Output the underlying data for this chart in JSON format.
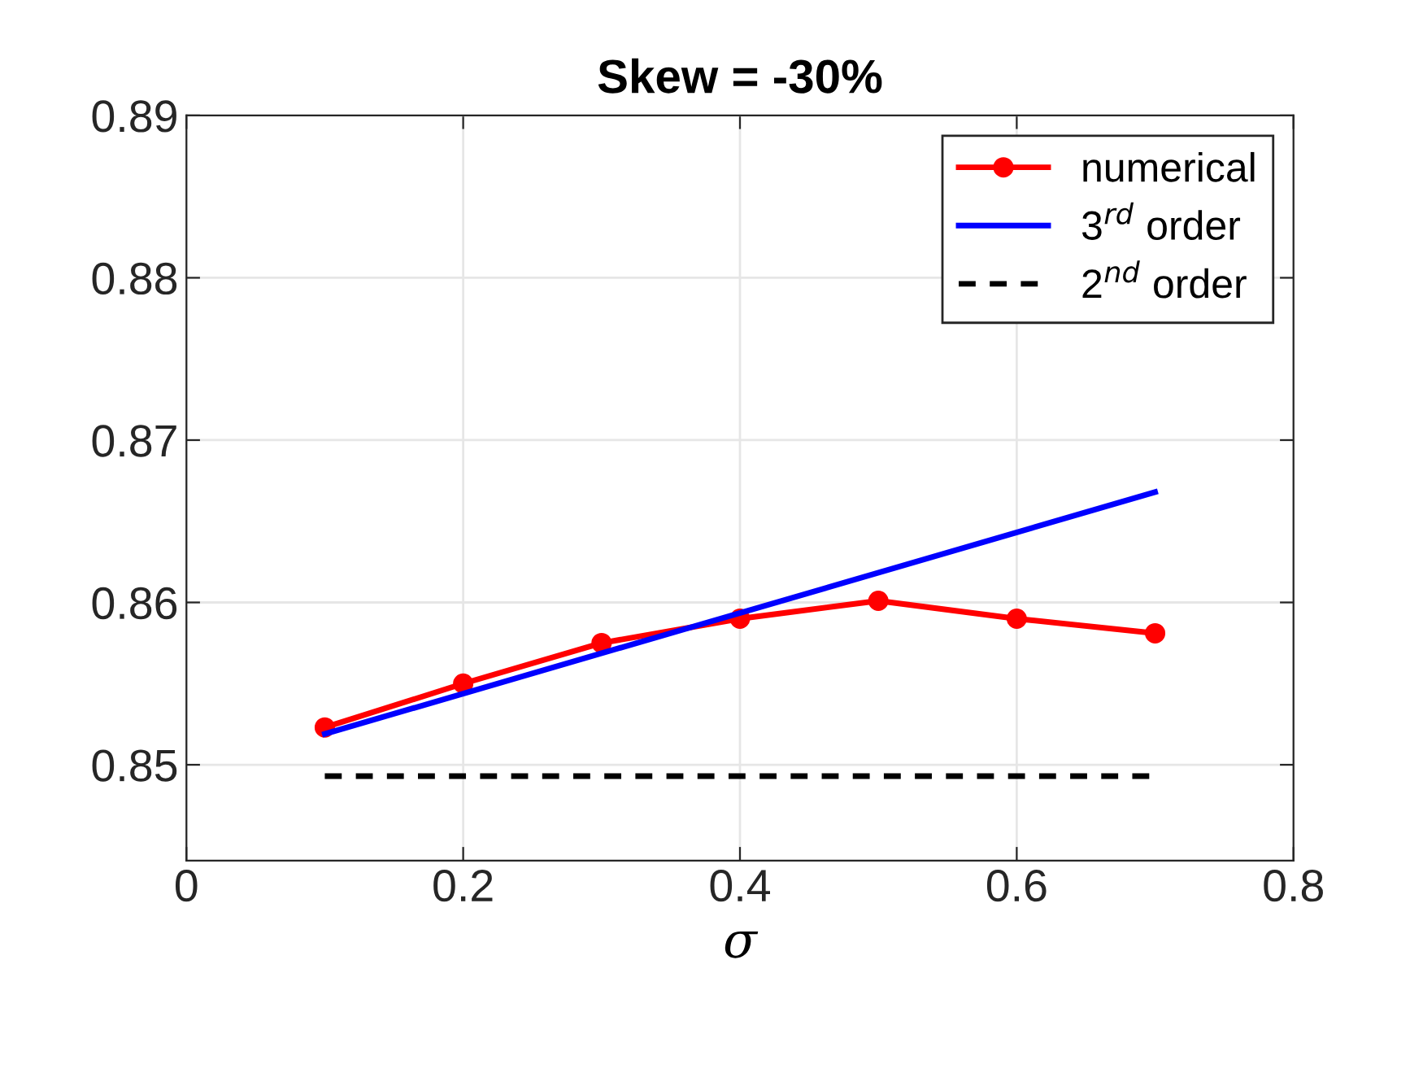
{
  "chart_data": {
    "type": "line",
    "title": "Skew = -30%",
    "xlabel": "σ",
    "xlim": [
      0,
      0.8
    ],
    "xticks": [
      0,
      0.2,
      0.4,
      0.6,
      0.8
    ],
    "ylim": [
      0.8441,
      0.89
    ],
    "yticks": [
      0.85,
      0.86,
      0.87,
      0.88,
      0.89
    ],
    "grid": true,
    "legend": "top right",
    "series": [
      {
        "name": "numerical",
        "color": "#ff0000",
        "marker": "circle",
        "line_style": "solid",
        "x": [
          0.1,
          0.2,
          0.3,
          0.4,
          0.5,
          0.6,
          0.7
        ],
        "values": [
          0.8523,
          0.855,
          0.8575,
          0.859,
          0.8601,
          0.859,
          0.8581
        ]
      },
      {
        "name": "3$^{rd}$ order",
        "color": "#0000ff",
        "marker": "none",
        "line_style": "solid",
        "x": [
          0.1,
          0.7
        ],
        "values": [
          0.8519,
          0.8668
        ]
      },
      {
        "name": "2$^{nd}$ order",
        "color": "#000000",
        "marker": "none",
        "line_style": "dashed",
        "x": [
          0.1,
          0.7
        ],
        "values": [
          0.8493,
          0.8493
        ]
      }
    ]
  }
}
